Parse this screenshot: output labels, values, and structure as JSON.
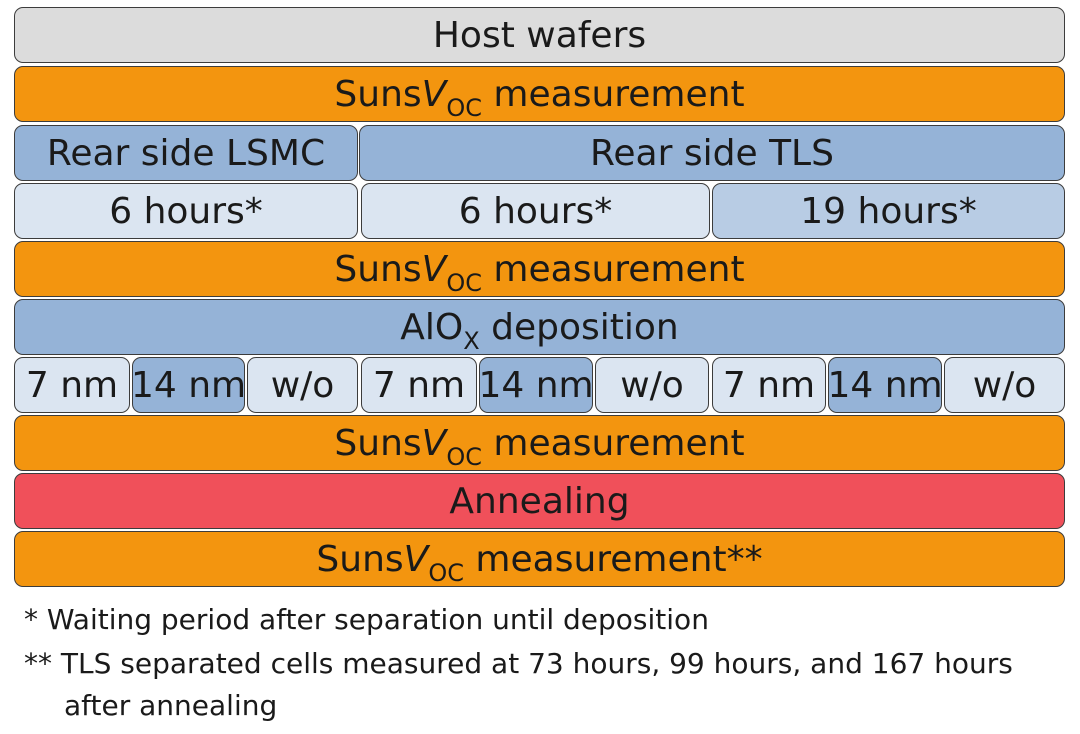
{
  "row1": {
    "label": "Host wafers"
  },
  "suns": {
    "prefix": "Suns",
    "v": "V",
    "sub": "OC",
    "suffix": " measurement",
    "last_suffix": " measurement**"
  },
  "row3": {
    "left": "Rear side LSMC",
    "right": "Rear side TLS"
  },
  "row4": {
    "a": "6 hours*",
    "b": "6 hours*",
    "c": "19 hours*"
  },
  "row6": {
    "prefix": "AlO",
    "sub": "X",
    "suffix": " deposition"
  },
  "row7": {
    "items": [
      "7 nm",
      "14 nm",
      "w/o",
      "7 nm",
      "14 nm",
      "w/o",
      "7 nm",
      "14 nm",
      "w/o"
    ]
  },
  "row9": {
    "label": "Annealing"
  },
  "notes": {
    "n1": "* Waiting period after separation until deposition",
    "n2": "** TLS separated cells measured at 73 hours, 99 hours, and 167 hours",
    "n3": "after annealing"
  }
}
